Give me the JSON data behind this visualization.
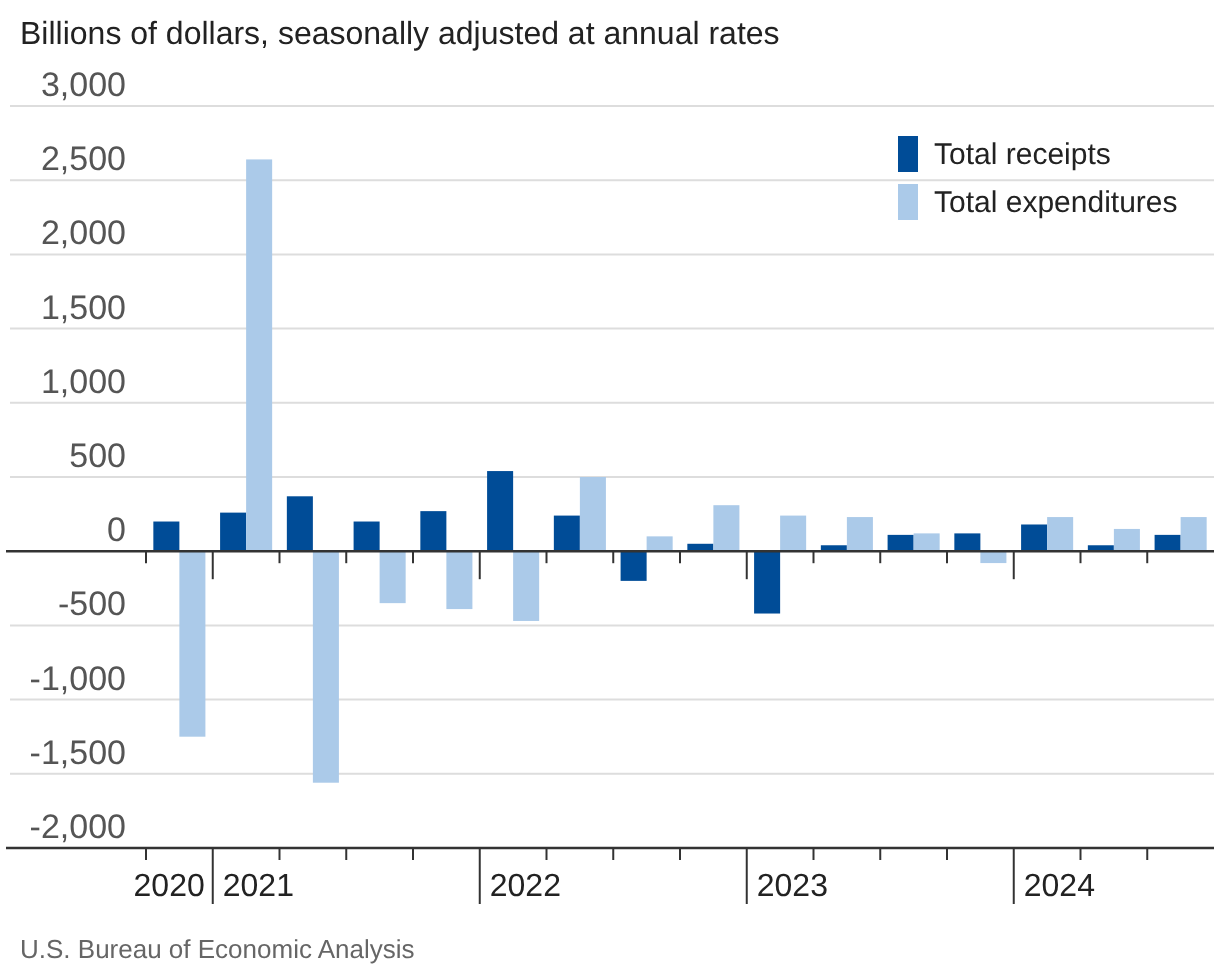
{
  "chart_data": {
    "type": "bar",
    "title": "Billions of dollars, seasonally adjusted at annual rates",
    "categories": [
      "2020",
      "2021",
      null,
      null,
      null,
      "2022",
      null,
      null,
      null,
      "2023",
      null,
      null,
      null,
      "2024",
      null,
      null
    ],
    "series": [
      {
        "name": "Total receipts",
        "color": "#004c97",
        "values": [
          200,
          260,
          370,
          200,
          270,
          540,
          240,
          -200,
          50,
          -420,
          40,
          110,
          120,
          180,
          40,
          110
        ]
      },
      {
        "name": "Total expenditures",
        "color": "#abcae9",
        "values": [
          -1250,
          2640,
          -1560,
          -350,
          -390,
          -470,
          500,
          100,
          310,
          240,
          230,
          120,
          -80,
          230,
          150,
          230
        ]
      }
    ],
    "ylim": [
      -2000,
      3000
    ],
    "yticks": [
      {
        "value": 3000,
        "label": "3,000"
      },
      {
        "value": 2500,
        "label": "2,500"
      },
      {
        "value": 2000,
        "label": "2,000"
      },
      {
        "value": 1500,
        "label": "1,500"
      },
      {
        "value": 1000,
        "label": "1,000"
      },
      500,
      0,
      -500,
      {
        "value": -1000,
        "label": "-1,000"
      },
      {
        "value": -1500,
        "label": "-1,500"
      },
      {
        "value": -2000,
        "label": "-2,000"
      }
    ],
    "grid": "y",
    "legend": "top right",
    "annotations": [
      "U.S. Bureau of Economic Analysis"
    ]
  }
}
